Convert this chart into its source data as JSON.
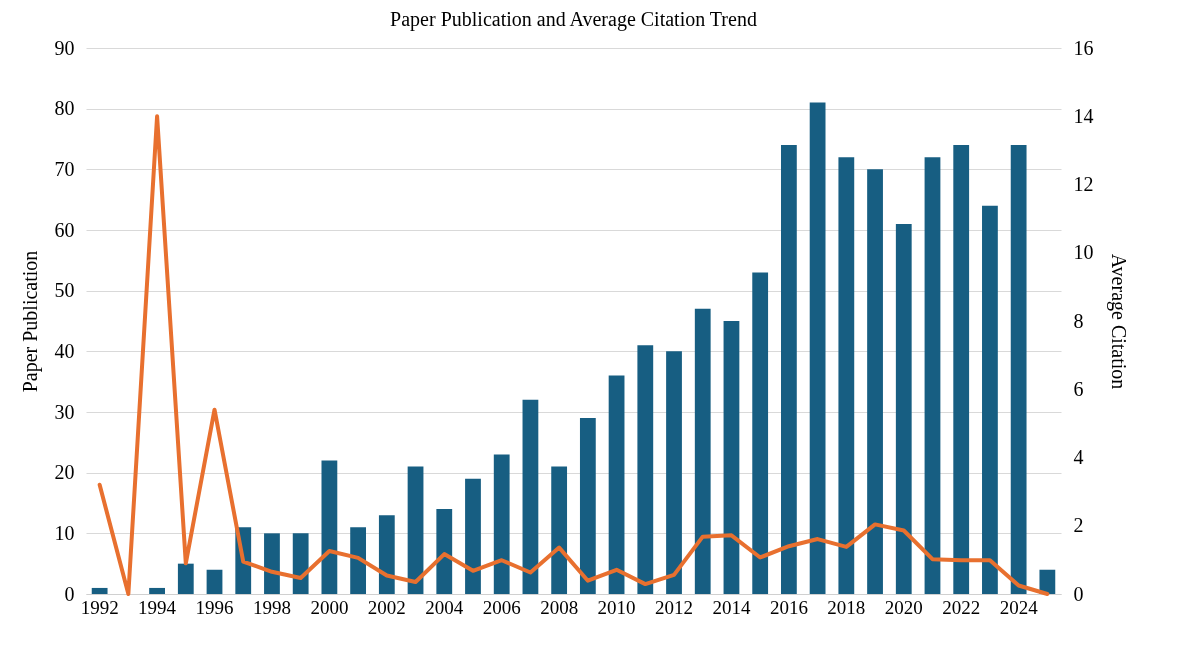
{
  "chart_data": {
    "type": "bar",
    "title": "Paper Publication and Average Citation Trend",
    "xlabel": null,
    "ylabel": "Paper Publication",
    "y2label": "Average Citation",
    "categories": [
      "1992",
      null,
      "1994",
      null,
      "1996",
      null,
      "1998",
      null,
      "2000",
      null,
      "2002",
      null,
      "2004",
      null,
      "2006",
      null,
      "2008",
      null,
      "2010",
      null,
      "2012",
      null,
      "2014",
      null,
      "2016",
      null,
      "2018",
      null,
      "2020",
      null,
      "2022",
      null,
      "2024",
      null
    ],
    "series": [
      {
        "color": "#175e82",
        "values": [
          1,
          0,
          1,
          5,
          4,
          11,
          10,
          10,
          22,
          11,
          13,
          21,
          14,
          19,
          23,
          32,
          21,
          29,
          36,
          41,
          40,
          47,
          45,
          53,
          74,
          81,
          72,
          70,
          61,
          72,
          74,
          64,
          74,
          4
        ]
      },
      {
        "type": "line",
        "axis": "y2",
        "color": "#e8702f",
        "values": [
          3.2,
          0,
          14.0,
          0.9,
          5.4,
          0.95,
          0.65,
          0.47,
          1.26,
          1.06,
          0.54,
          0.35,
          1.17,
          0.68,
          0.99,
          0.63,
          1.36,
          0.39,
          0.71,
          0.29,
          0.56,
          1.68,
          1.72,
          1.07,
          1.4,
          1.61,
          1.38,
          2.04,
          1.86,
          1.02,
          0.99,
          0.99,
          0.25,
          0
        ]
      }
    ],
    "ylim": [
      0,
      90
    ],
    "yticks": [
      0,
      10,
      20,
      30,
      40,
      50,
      60,
      70,
      80,
      90
    ],
    "y2lim": [
      0,
      16
    ],
    "y2ticks": [
      0,
      2,
      4,
      6,
      8,
      10,
      12,
      14,
      16
    ],
    "grid": "y"
  }
}
